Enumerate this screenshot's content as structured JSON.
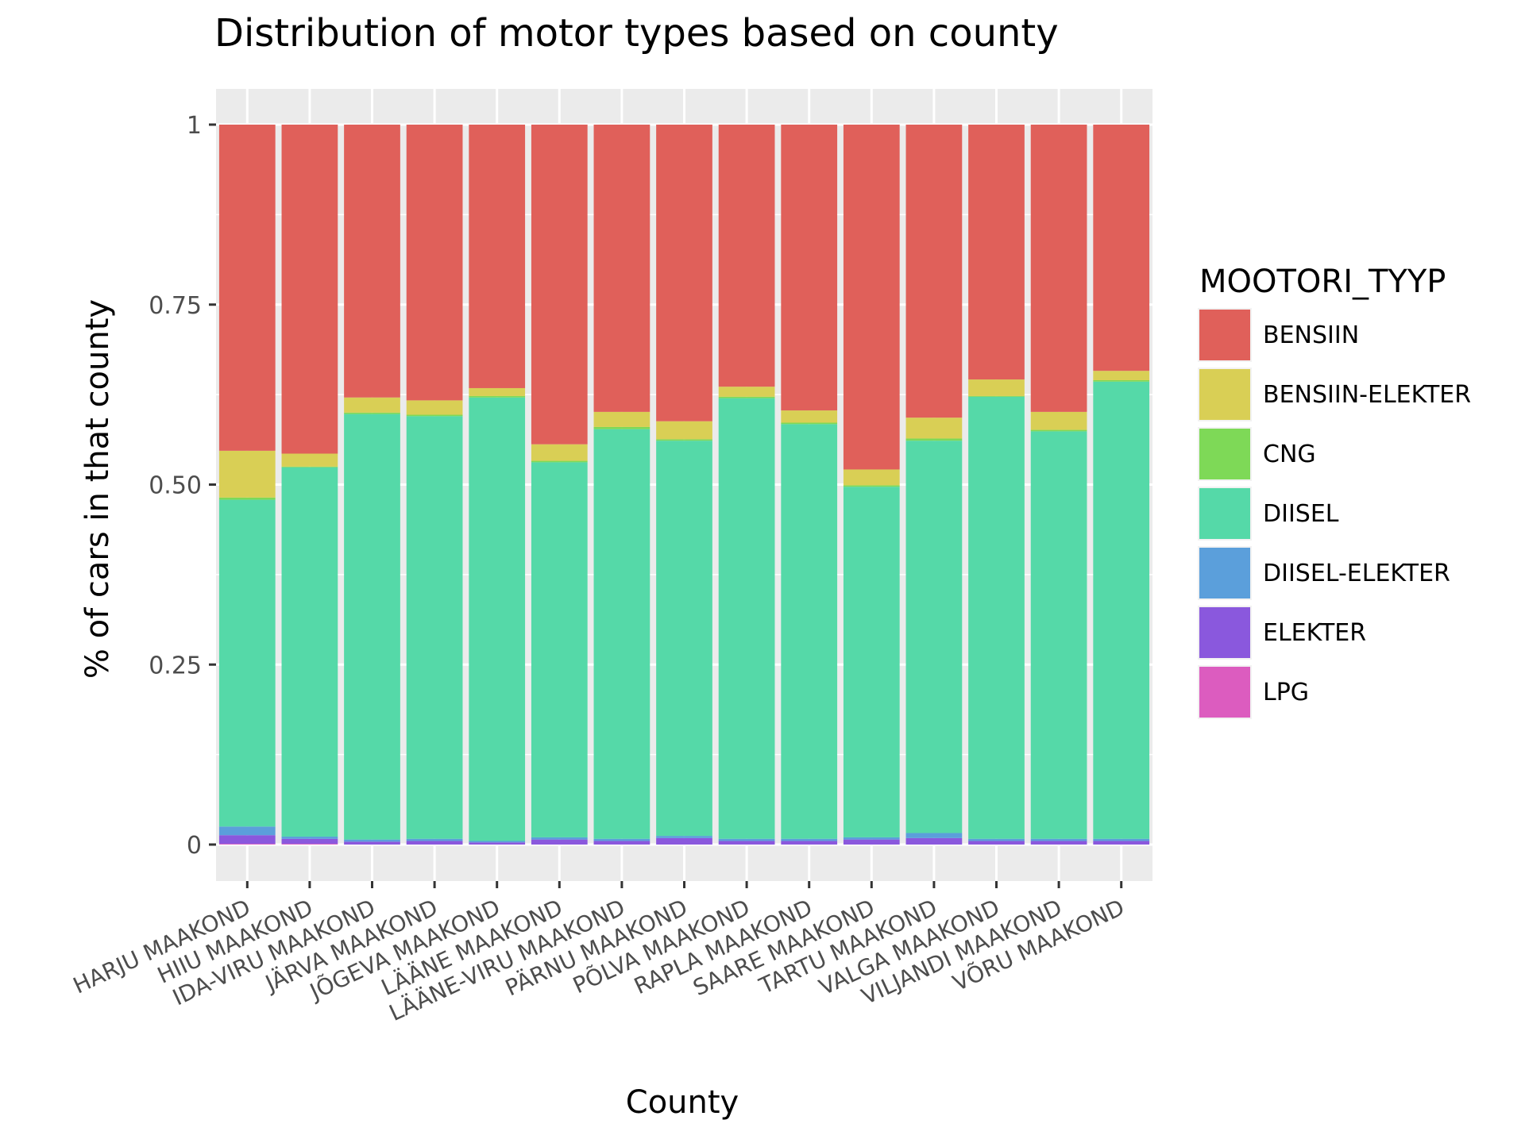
{
  "chart_data": {
    "type": "bar",
    "stacked": true,
    "title": "Distribution of motor types based on county",
    "xlabel": "County",
    "ylabel": "% of cars in that county",
    "ylim": [
      0,
      1
    ],
    "yticks": [
      0,
      0.25,
      0.5,
      0.75,
      1
    ],
    "ytick_labels": [
      "0",
      "0.25",
      "0.50",
      "0.75",
      "1"
    ],
    "grid": true,
    "legend": {
      "title": "MOOTORI_TYYP",
      "placement": "right"
    },
    "categories": [
      "HARJU MAAKOND",
      "HIIU MAAKOND",
      "IDA-VIRU MAAKOND",
      "JÄRVA MAAKOND",
      "JÕGEVA MAAKOND",
      "LÄÄNE MAAKOND",
      "LÄÄNE-VIRU MAAKOND",
      "PÄRNU MAAKOND",
      "PÕLVA MAAKOND",
      "RAPLA MAAKOND",
      "SAARE MAAKOND",
      "TARTU MAAKOND",
      "VALGA MAAKOND",
      "VILJANDI MAAKOND",
      "VÕRU MAAKOND"
    ],
    "series": [
      {
        "name": "BENSIIN",
        "color": "#E0605A",
        "values": [
          0.453,
          0.457,
          0.379,
          0.383,
          0.366,
          0.444,
          0.399,
          0.412,
          0.364,
          0.397,
          0.479,
          0.407,
          0.354,
          0.399,
          0.342
        ]
      },
      {
        "name": "BENSIIN-ELEKTER",
        "color": "#D9CF55",
        "values": [
          0.065,
          0.018,
          0.021,
          0.02,
          0.011,
          0.023,
          0.021,
          0.025,
          0.014,
          0.017,
          0.022,
          0.029,
          0.023,
          0.025,
          0.013
        ]
      },
      {
        "name": "CNG",
        "color": "#7ED957",
        "values": [
          0.003,
          0.001,
          0.002,
          0.002,
          0.002,
          0.002,
          0.003,
          0.002,
          0.002,
          0.002,
          0.002,
          0.003,
          0.001,
          0.002,
          0.002
        ]
      },
      {
        "name": "DIISEL",
        "color": "#55D9A8",
        "values": [
          0.454,
          0.513,
          0.591,
          0.587,
          0.616,
          0.521,
          0.569,
          0.549,
          0.612,
          0.576,
          0.487,
          0.545,
          0.614,
          0.566,
          0.635
        ]
      },
      {
        "name": "DIISEL-ELEKTER",
        "color": "#5B9FDB",
        "values": [
          0.012,
          0.003,
          0.003,
          0.003,
          0.002,
          0.003,
          0.003,
          0.003,
          0.003,
          0.003,
          0.003,
          0.007,
          0.003,
          0.003,
          0.003
        ]
      },
      {
        "name": "ELEKTER",
        "color": "#8A58DD",
        "values": [
          0.012,
          0.007,
          0.004,
          0.005,
          0.003,
          0.007,
          0.005,
          0.009,
          0.005,
          0.005,
          0.007,
          0.009,
          0.005,
          0.005,
          0.005
        ]
      },
      {
        "name": "LPG",
        "color": "#DC5CBF",
        "values": [
          0.001,
          0.001,
          0.0,
          0.0,
          0.0,
          0.0,
          0.0,
          0.0,
          0.0,
          0.0,
          0.0,
          0.0,
          0.0,
          0.0,
          0.0
        ]
      }
    ]
  }
}
